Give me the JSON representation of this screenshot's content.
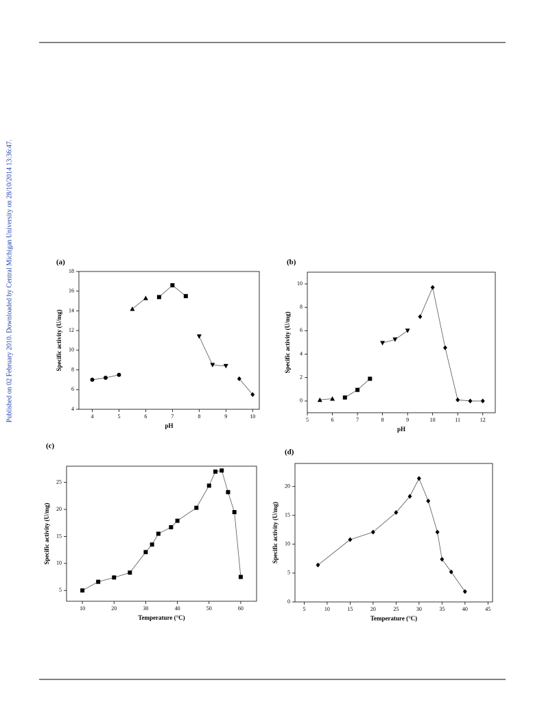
{
  "side_note": "Published on 02 February 2010. Downloaded by Central Michigan University on 28/10/2014 13:36:47.",
  "chart_data": [
    {
      "type": "line",
      "panel": "(a)",
      "x_label": "pH",
      "y_label": "Specific activity (U/mg)",
      "xlim": [
        3.5,
        10.25
      ],
      "ylim": [
        4,
        18
      ],
      "xticks": [
        4,
        5,
        6,
        7,
        8,
        9,
        10
      ],
      "yticks": [
        4,
        6,
        8,
        10,
        12,
        14,
        16,
        18
      ],
      "series": [
        {
          "marker": "circle",
          "color": "#000000",
          "x": [
            4,
            4.5,
            5
          ],
          "values": [
            7.0,
            7.2,
            7.5
          ]
        },
        {
          "marker": "triangle-up",
          "color": "#000000",
          "x": [
            5.5,
            6
          ],
          "values": [
            14.2,
            15.3
          ]
        },
        {
          "marker": "square",
          "color": "#000000",
          "x": [
            6.5,
            7,
            7.5
          ],
          "values": [
            15.4,
            16.6,
            15.5
          ]
        },
        {
          "marker": "triangle-down",
          "color": "#000000",
          "x": [
            8,
            8.5,
            9
          ],
          "values": [
            11.4,
            8.5,
            8.4
          ]
        },
        {
          "marker": "diamond",
          "color": "#000000",
          "x": [
            9.5,
            10
          ],
          "values": [
            7.1,
            5.5
          ]
        }
      ]
    },
    {
      "type": "line",
      "panel": "(b)",
      "x_label": "pH",
      "y_label": "Specific activity (U/mg)",
      "xlim": [
        5,
        12.5
      ],
      "ylim": [
        -1,
        11
      ],
      "xticks": [
        5,
        6,
        7,
        8,
        9,
        10,
        11,
        12
      ],
      "yticks": [
        0,
        2,
        4,
        6,
        8,
        10
      ],
      "series": [
        {
          "marker": "triangle-up",
          "color": "#000000",
          "x": [
            5.5,
            6
          ],
          "values": [
            0.1,
            0.2
          ]
        },
        {
          "marker": "square",
          "color": "#000000",
          "x": [
            6.5,
            7,
            7.5
          ],
          "values": [
            0.3,
            0.95,
            1.9
          ]
        },
        {
          "marker": "triangle-down",
          "color": "#000000",
          "x": [
            8,
            8.5,
            9
          ],
          "values": [
            4.95,
            5.25,
            6.0
          ]
        },
        {
          "marker": "diamond",
          "color": "#000000",
          "x": [
            9.5,
            10,
            10.5,
            11,
            11.5,
            12
          ],
          "values": [
            7.2,
            9.7,
            4.55,
            0.1,
            0.0,
            0.0
          ]
        }
      ]
    },
    {
      "type": "line",
      "panel": "(c)",
      "x_label": "Temperature (°C)",
      "y_label": "Specific activity (U/mg)",
      "xlim": [
        5,
        65
      ],
      "ylim": [
        3,
        28
      ],
      "xticks": [
        10,
        20,
        30,
        40,
        50,
        60
      ],
      "yticks": [
        5,
        10,
        15,
        20,
        25
      ],
      "series": [
        {
          "marker": "square",
          "color": "#000000",
          "x": [
            10,
            15,
            20,
            25,
            30,
            32,
            34,
            38,
            40,
            46,
            50,
            52,
            54,
            56,
            58,
            60
          ],
          "values": [
            5.0,
            6.6,
            7.4,
            8.3,
            12.1,
            13.5,
            15.5,
            16.7,
            17.9,
            20.3,
            24.4,
            27.0,
            27.2,
            23.2,
            19.5,
            7.5
          ]
        }
      ]
    },
    {
      "type": "line",
      "panel": "(d)",
      "x_label": "Temperature (°C)",
      "y_label": "Specific activity (U/mg)",
      "xlim": [
        3,
        46
      ],
      "ylim": [
        0,
        24
      ],
      "xticks": [
        5,
        10,
        15,
        20,
        25,
        30,
        35,
        40,
        45
      ],
      "yticks": [
        0,
        5,
        10,
        15,
        20
      ],
      "series": [
        {
          "marker": "diamond",
          "color": "#000000",
          "x": [
            8,
            15,
            20,
            25,
            28,
            30,
            32,
            34,
            35,
            37,
            40
          ],
          "values": [
            6.4,
            10.8,
            12.1,
            15.5,
            18.3,
            21.4,
            17.5,
            12.1,
            7.4,
            5.2,
            1.8
          ]
        }
      ]
    }
  ]
}
